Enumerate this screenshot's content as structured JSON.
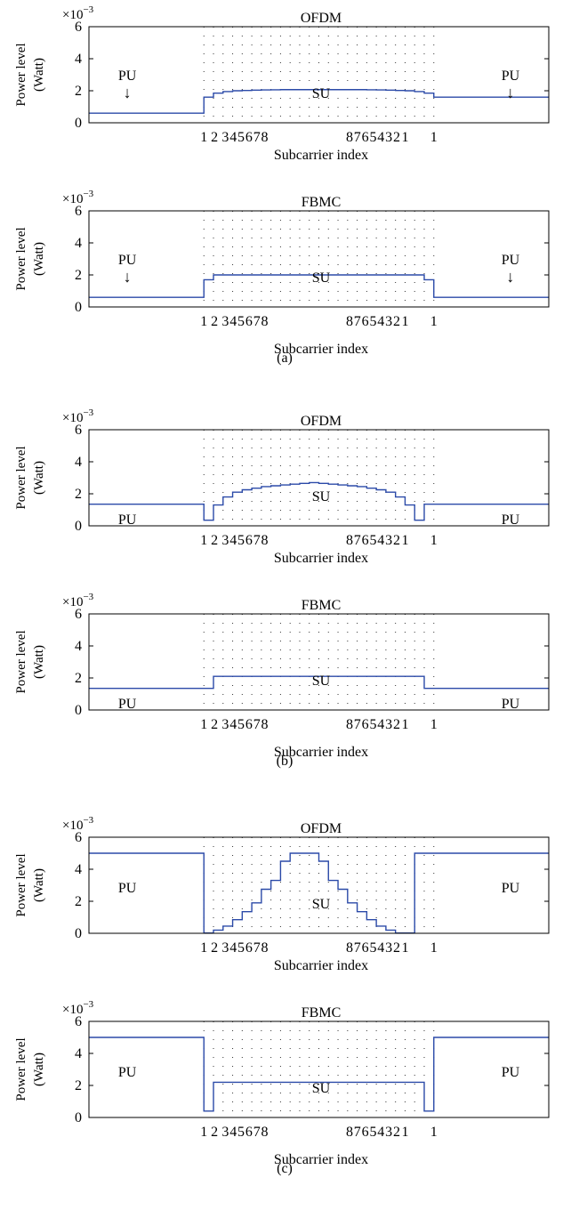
{
  "common": {
    "ylabel_line1": "Power level",
    "ylabel_line2": "(Watt)",
    "xlabel": "Subcarrier index",
    "exponent_base": "×10",
    "exponent_power": "−3",
    "yticks": [
      "0",
      "2",
      "4",
      "6"
    ],
    "xticks_left": [
      "1",
      "2",
      "3",
      "4",
      "5",
      "6",
      "7",
      "8"
    ],
    "xticks_right": [
      "8",
      "7",
      "6",
      "5",
      "4",
      "3",
      "2",
      "1"
    ],
    "pu_label": "PU",
    "su_label": "SU",
    "arrow_glyph": "↓"
  },
  "captions": [
    "(a)",
    "(b)",
    "(c)"
  ],
  "colors": {
    "line": "#2b4aa8",
    "axis": "#000000",
    "grid": "#333333"
  },
  "chart_data": [
    {
      "type": "line",
      "step": true,
      "group": "(a)",
      "title": "OFDM",
      "pu_arrows": true,
      "ylim": [
        0,
        6
      ],
      "xlim": [
        0,
        24
      ],
      "y_multiplier": "1e-3",
      "x": [
        0,
        6,
        6.5,
        7,
        7.5,
        8,
        8.5,
        9,
        9.5,
        10,
        10.5,
        11,
        11.5,
        12,
        12.5,
        13,
        13.5,
        14,
        14.5,
        15,
        15.5,
        16,
        16.5,
        17,
        17.5,
        18,
        24
      ],
      "y": [
        0.6,
        1.6,
        1.85,
        1.95,
        2.0,
        2.02,
        2.04,
        2.05,
        2.06,
        2.07,
        2.07,
        2.07,
        2.07,
        2.07,
        2.07,
        2.07,
        2.07,
        2.07,
        2.06,
        2.05,
        2.04,
        2.02,
        2.0,
        1.95,
        1.85,
        1.6,
        0.6
      ]
    },
    {
      "type": "line",
      "step": true,
      "group": "(a)",
      "title": "FBMC",
      "pu_arrows": true,
      "ylim": [
        0,
        6
      ],
      "xlim": [
        0,
        24
      ],
      "y_multiplier": "1e-3",
      "x": [
        0,
        6,
        6.5,
        17.5,
        18,
        24
      ],
      "y": [
        0.6,
        1.7,
        2.0,
        1.7,
        0.6,
        0.6
      ]
    },
    {
      "type": "line",
      "step": true,
      "group": "(b)",
      "title": "OFDM",
      "pu_arrows": false,
      "ylim": [
        0,
        6
      ],
      "xlim": [
        0,
        24
      ],
      "y_multiplier": "1e-3",
      "x": [
        0,
        6,
        6.5,
        7,
        7.5,
        8,
        8.5,
        9,
        9.5,
        10,
        10.5,
        11,
        11.5,
        12,
        12.5,
        13,
        13.5,
        14,
        14.5,
        15,
        15.5,
        16,
        16.5,
        17,
        17.5,
        18,
        24
      ],
      "y": [
        1.35,
        0.35,
        1.3,
        1.8,
        2.1,
        2.25,
        2.35,
        2.45,
        2.5,
        2.55,
        2.6,
        2.65,
        2.7,
        2.65,
        2.6,
        2.55,
        2.5,
        2.45,
        2.35,
        2.25,
        2.1,
        1.8,
        1.3,
        0.35,
        1.35,
        1.35,
        1.35
      ]
    },
    {
      "type": "line",
      "step": true,
      "group": "(b)",
      "title": "FBMC",
      "pu_arrows": false,
      "ylim": [
        0,
        6
      ],
      "xlim": [
        0,
        24
      ],
      "y_multiplier": "1e-3",
      "x": [
        0,
        6,
        6.5,
        17.5,
        18,
        24
      ],
      "y": [
        1.35,
        1.35,
        2.1,
        1.35,
        1.35,
        1.35
      ]
    },
    {
      "type": "line",
      "step": true,
      "group": "(c)",
      "title": "OFDM",
      "pu_arrows": false,
      "ylim": [
        0,
        6
      ],
      "xlim": [
        0,
        24
      ],
      "y_multiplier": "1e-3",
      "x": [
        0,
        6,
        6.5,
        7,
        7.5,
        8,
        8.5,
        9,
        9.5,
        10,
        10.5,
        11,
        11.5,
        12,
        12.5,
        13,
        13.5,
        14,
        14.5,
        15,
        15.5,
        16,
        16.5,
        17,
        17.5,
        18,
        24
      ],
      "y": [
        5.0,
        0.02,
        0.2,
        0.45,
        0.85,
        1.35,
        1.9,
        2.75,
        3.3,
        4.5,
        5.0,
        5.0,
        5.0,
        4.5,
        3.3,
        2.75,
        1.9,
        1.35,
        0.85,
        0.45,
        0.2,
        0.02,
        0.02,
        5.0,
        5.0,
        5.0,
        5.0
      ]
    },
    {
      "type": "line",
      "step": true,
      "group": "(c)",
      "title": "FBMC",
      "pu_arrows": false,
      "ylim": [
        0,
        6
      ],
      "xlim": [
        0,
        24
      ],
      "y_multiplier": "1e-3",
      "x": [
        0,
        6,
        6.5,
        17.5,
        18,
        24
      ],
      "y": [
        5.0,
        0.4,
        2.2,
        0.4,
        5.0,
        5.0
      ]
    }
  ]
}
